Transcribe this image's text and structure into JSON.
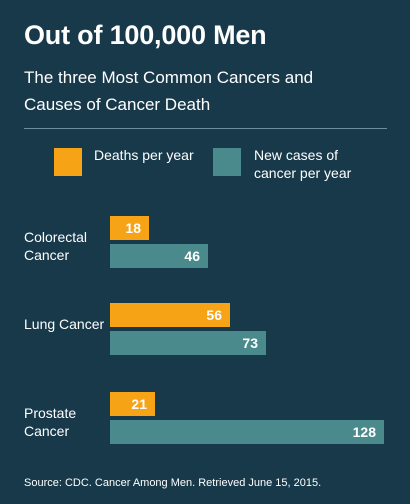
{
  "title": "Out of 100,000 Men",
  "subtitle": "The three Most Common Cancers and Causes of Cancer Death",
  "colors": {
    "background": "#17394a",
    "deaths": "#f7a316",
    "cases": "#4a8a8d"
  },
  "legend": {
    "deaths_label": "Deaths per year",
    "cases_label": "New cases of cancer per year"
  },
  "chart_data": {
    "type": "bar",
    "orientation": "horizontal",
    "categories": [
      "Colorectal Cancer",
      "Lung Cancer",
      "Prostate Cancer"
    ],
    "series": [
      {
        "name": "Deaths per year",
        "values": [
          18,
          56,
          21
        ]
      },
      {
        "name": "New cases of cancer per year",
        "values": [
          46,
          73,
          128
        ]
      }
    ],
    "xlim": [
      0,
      128
    ],
    "grid": false,
    "legend_position": "top"
  },
  "source": "Source: CDC. Cancer Among Men. Retrieved June 15, 2015."
}
